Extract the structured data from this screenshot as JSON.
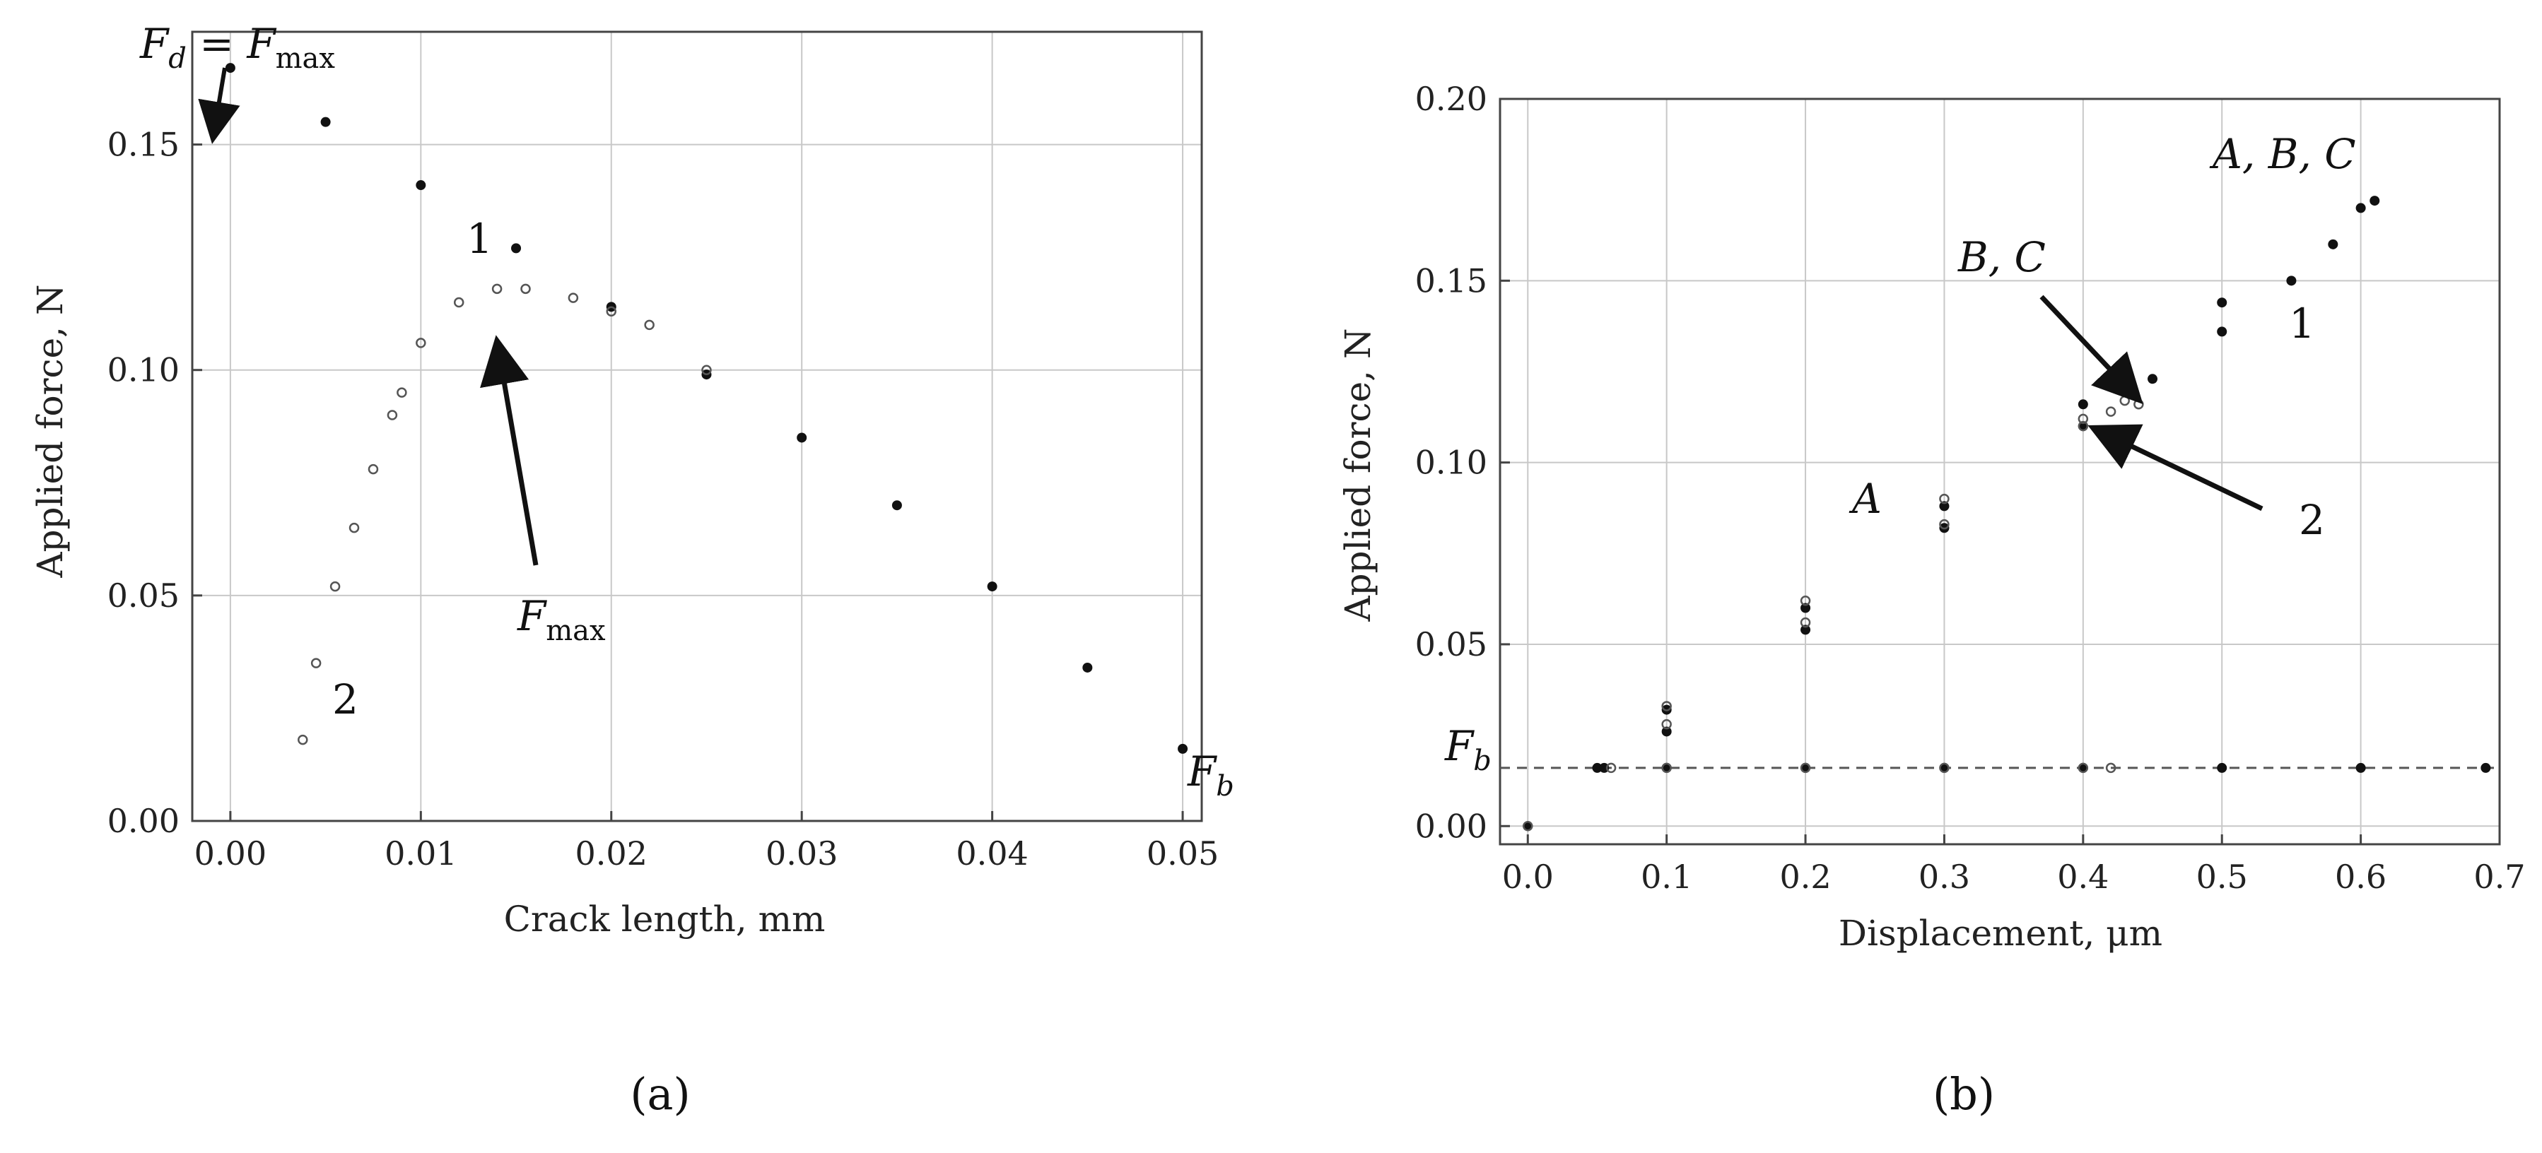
{
  "chart_data": [
    {
      "type": "scatter",
      "panel_label": "(a)",
      "xlabel": "Crack length, mm",
      "ylabel": "Applied force, N",
      "xlim": [
        -0.002,
        0.051
      ],
      "ylim": [
        0,
        0.175
      ],
      "xticks": [
        0.0,
        0.01,
        0.02,
        0.03,
        0.04,
        0.05
      ],
      "xtick_labels": [
        "0.00",
        "0.01",
        "0.02",
        "0.03",
        "0.04",
        "0.05"
      ],
      "yticks": [
        0.0,
        0.05,
        0.1,
        0.15
      ],
      "ytick_labels": [
        "0.00",
        "0.05",
        "0.10",
        "0.15"
      ],
      "grid": true,
      "series": [
        {
          "name": "1",
          "marker": "filled",
          "x": [
            0.0,
            0.005,
            0.01,
            0.015,
            0.02,
            0.025,
            0.03,
            0.035,
            0.04,
            0.045,
            0.05
          ],
          "y": [
            0.167,
            0.155,
            0.141,
            0.127,
            0.114,
            0.099,
            0.085,
            0.07,
            0.052,
            0.034,
            0.016
          ]
        },
        {
          "name": "2",
          "marker": "open",
          "x": [
            0.0038,
            0.0045,
            0.0055,
            0.0065,
            0.0075,
            0.0085,
            0.009,
            0.01,
            0.012,
            0.014,
            0.0155,
            0.018,
            0.02,
            0.022,
            0.025
          ],
          "y": [
            0.018,
            0.035,
            0.052,
            0.065,
            0.078,
            0.09,
            0.095,
            0.106,
            0.115,
            0.118,
            0.118,
            0.116,
            0.113,
            0.11,
            0.1
          ]
        }
      ],
      "annotations": [
        {
          "id": "fd",
          "main": "F",
          "sub": "d",
          "rest": " = ",
          "main2": "F",
          "sub2": "max"
        },
        {
          "id": "fmax",
          "main": "F",
          "sub": "max"
        },
        {
          "id": "fb",
          "main": "F",
          "sub": "b"
        },
        {
          "id": "lbl1",
          "text": "1"
        },
        {
          "id": "lbl2",
          "text": "2"
        }
      ]
    },
    {
      "type": "scatter",
      "panel_label": "(b)",
      "xlabel": "Displacement, μm",
      "ylabel": "Applied force, N",
      "xlim": [
        -0.02,
        0.7
      ],
      "ylim": [
        -0.005,
        0.2
      ],
      "xticks": [
        0.0,
        0.1,
        0.2,
        0.3,
        0.4,
        0.5,
        0.6,
        0.7
      ],
      "xtick_labels": [
        "0.0",
        "0.1",
        "0.2",
        "0.3",
        "0.4",
        "0.5",
        "0.6",
        "0.7"
      ],
      "yticks": [
        0.0,
        0.05,
        0.1,
        0.15,
        0.2
      ],
      "ytick_labels": [
        "0.00",
        "0.05",
        "0.10",
        "0.15",
        "0.20"
      ],
      "grid": true,
      "series": [
        {
          "name": "1",
          "marker": "filled",
          "x": [
            0.0,
            0.05,
            0.1,
            0.2,
            0.3,
            0.4,
            0.5,
            0.6,
            0.61,
            0.58,
            0.55,
            0.5,
            0.45,
            0.4,
            0.3,
            0.2,
            0.1,
            0.055,
            0.1,
            0.2,
            0.3,
            0.4,
            0.5,
            0.6,
            0.69
          ],
          "y": [
            0.0,
            0.016,
            0.032,
            0.06,
            0.088,
            0.116,
            0.144,
            0.17,
            0.172,
            0.16,
            0.15,
            0.136,
            0.123,
            0.11,
            0.082,
            0.054,
            0.026,
            0.016,
            0.016,
            0.016,
            0.016,
            0.016,
            0.016,
            0.016,
            0.016
          ]
        },
        {
          "name": "2",
          "marker": "open",
          "x": [
            0.0,
            0.1,
            0.2,
            0.3,
            0.4,
            0.43,
            0.44,
            0.42,
            0.4,
            0.3,
            0.2,
            0.1,
            0.06,
            0.1,
            0.2,
            0.3,
            0.4,
            0.42
          ],
          "y": [
            0.0,
            0.033,
            0.062,
            0.09,
            0.112,
            0.117,
            0.116,
            0.114,
            0.11,
            0.083,
            0.056,
            0.028,
            0.016,
            0.016,
            0.016,
            0.016,
            0.016,
            0.016
          ]
        }
      ],
      "annotations": [
        {
          "id": "abc",
          "text": "A, B, C"
        },
        {
          "id": "bc",
          "text": "B, C"
        },
        {
          "id": "a",
          "text": "A"
        },
        {
          "id": "lbl1",
          "text": "1"
        },
        {
          "id": "lbl2",
          "text": "2"
        },
        {
          "id": "fb",
          "main": "F",
          "sub": "b"
        }
      ],
      "reference_line": {
        "y": 0.016,
        "style": "dashed"
      }
    }
  ]
}
